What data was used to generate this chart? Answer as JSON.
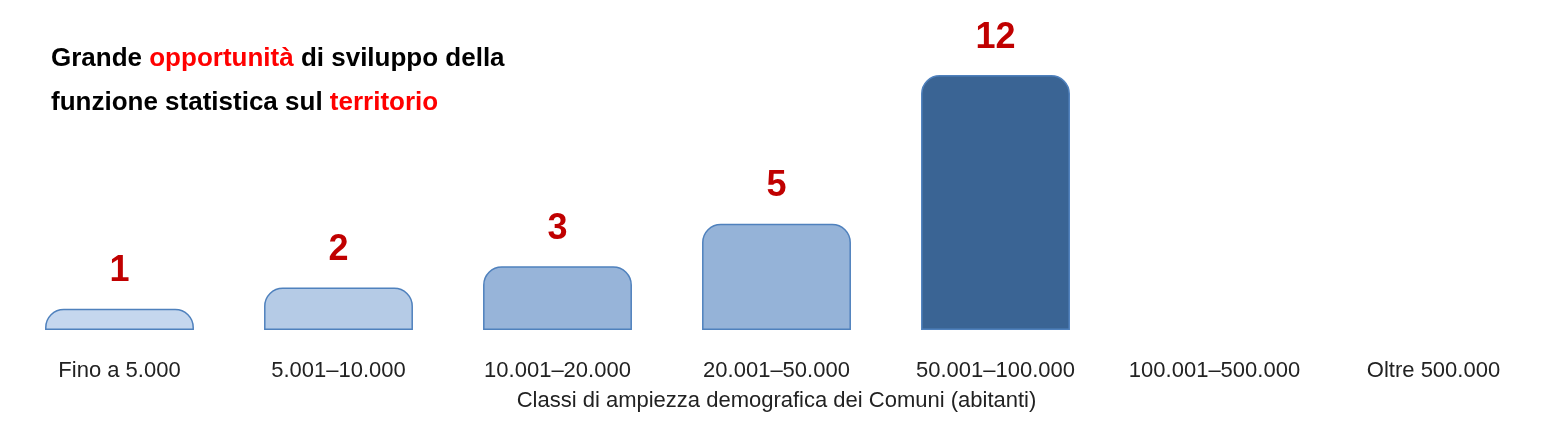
{
  "chart_data": {
    "type": "bar",
    "title": "Grande opportunità di sviluppo della funzione statistica sul territorio",
    "xlabel": "Classi di ampiezza demografica dei Comuni (abitanti)",
    "categories": [
      "Fino a 5.000",
      "5.001–10.000",
      "10.001–20.000",
      "20.001–50.000",
      "50.001–100.000",
      "100.001–500.000",
      "Oltre 500.000"
    ],
    "values": [
      1,
      2,
      3,
      5,
      12,
      null,
      null
    ],
    "colors": [
      "#c5d7ee",
      "#b5cbe6",
      "#97b4d9",
      "#95b3d8",
      "#3a6494",
      "#29415f",
      "#1b2a52"
    ],
    "data_labels": true
  }
}
